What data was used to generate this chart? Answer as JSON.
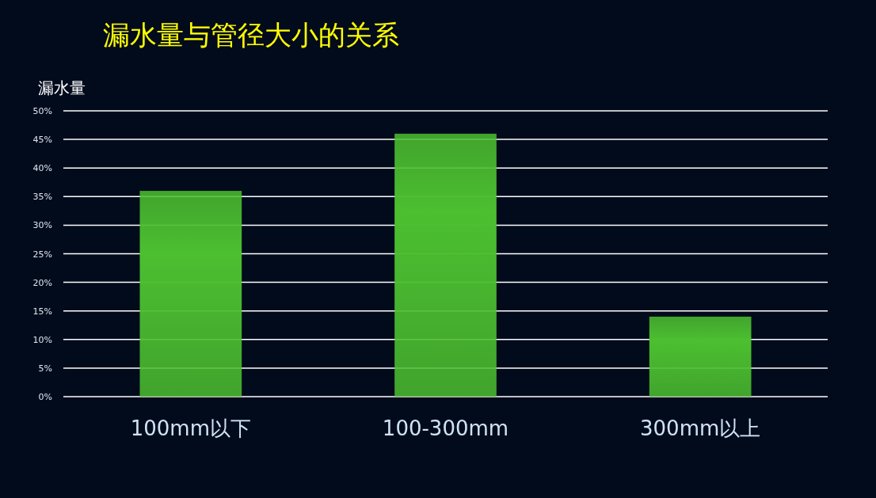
{
  "chart_data": {
    "type": "bar",
    "title": "漏水量与管径大小的关系",
    "ylabel": "漏水量",
    "categories": [
      "100mm以下",
      "100-300mm",
      "300mm以上"
    ],
    "values": [
      36,
      46,
      14
    ],
    "color": "#4cbf30",
    "ylim": [
      0,
      50
    ],
    "yticks": [
      {
        "value": 0,
        "label": "0%"
      },
      {
        "value": 5,
        "label": "5%"
      },
      {
        "value": 10,
        "label": "10%"
      },
      {
        "value": 15,
        "label": "15%"
      },
      {
        "value": 20,
        "label": "20%"
      },
      {
        "value": 25,
        "label": "25%"
      },
      {
        "value": 30,
        "label": "30%"
      },
      {
        "value": 35,
        "label": "35%"
      },
      {
        "value": 40,
        "label": "40%"
      },
      {
        "value": 45,
        "label": "45%"
      },
      {
        "value": 50,
        "label": "50%"
      }
    ],
    "grid": "y"
  }
}
